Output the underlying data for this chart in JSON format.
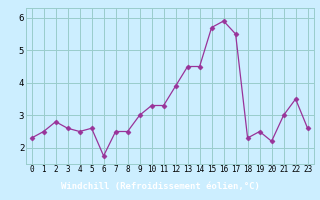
{
  "x": [
    0,
    1,
    2,
    3,
    4,
    5,
    6,
    7,
    8,
    9,
    10,
    11,
    12,
    13,
    14,
    15,
    16,
    17,
    18,
    19,
    20,
    21,
    22,
    23
  ],
  "y": [
    2.3,
    2.5,
    2.8,
    2.6,
    2.5,
    2.6,
    1.75,
    2.5,
    2.5,
    3.0,
    3.3,
    3.3,
    3.9,
    4.5,
    4.5,
    5.7,
    5.9,
    5.5,
    2.3,
    2.5,
    2.2,
    3.0,
    3.5,
    2.6
  ],
  "line_color": "#993399",
  "marker": "D",
  "marker_size": 2.5,
  "bg_color": "#cceeff",
  "grid_color": "#99cccc",
  "xlabel": "Windchill (Refroidissement éolien,°C)",
  "xlabel_bg": "#7722aa",
  "xlabel_color": "#ffffff",
  "ylim": [
    1.5,
    6.3
  ],
  "yticks": [
    2,
    3,
    4,
    5,
    6
  ],
  "xtick_labels": [
    "0",
    "1",
    "2",
    "3",
    "4",
    "5",
    "6",
    "7",
    "8",
    "9",
    "10",
    "11",
    "12",
    "13",
    "14",
    "15",
    "16",
    "17",
    "18",
    "19",
    "20",
    "21",
    "22",
    "23"
  ],
  "tick_fontsize": 5.5,
  "ylabel_fontsize": 6.5,
  "xlabel_fontsize": 6.5
}
